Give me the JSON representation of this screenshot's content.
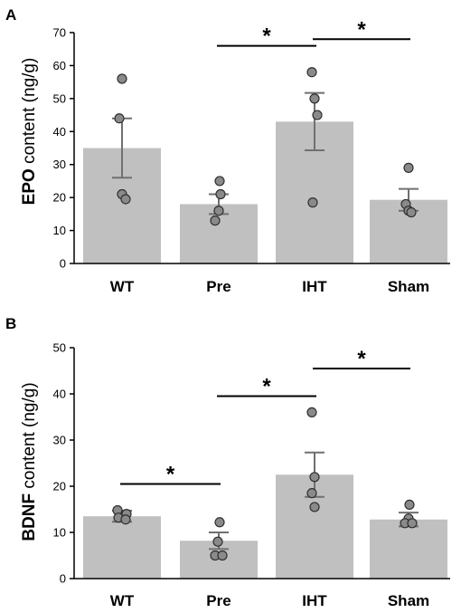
{
  "chart_data": [
    {
      "type": "bar",
      "panel": "A",
      "categories": [
        "WT",
        "Pre",
        "IHT",
        "Sham"
      ],
      "values": [
        35,
        18,
        43,
        19.3
      ],
      "sem": [
        9,
        3,
        8.7,
        3.3
      ],
      "points": [
        [
          56,
          44,
          21,
          19.5
        ],
        [
          25,
          21,
          16,
          13
        ],
        [
          58,
          50,
          45,
          18.5
        ],
        [
          29,
          18,
          16,
          15.5
        ]
      ],
      "ylabel_bold": "EPO",
      "ylabel_rest": " content (ng/g)",
      "ylim": [
        0,
        70
      ],
      "yticks": [
        "0",
        "10",
        "20",
        "30",
        "40",
        "50",
        "60",
        "70"
      ],
      "significance": [
        {
          "from": 1,
          "to": 2,
          "level": 66,
          "label": "*"
        },
        {
          "from": 2,
          "to": 3,
          "level": 68,
          "label": "*"
        }
      ],
      "bar_color": "#c0c0c0",
      "point_color": "#8a8a8a"
    },
    {
      "type": "bar",
      "panel": "B",
      "categories": [
        "WT",
        "Pre",
        "IHT",
        "Sham"
      ],
      "values": [
        13.5,
        8.2,
        22.5,
        12.8
      ],
      "sem": [
        1.2,
        1.8,
        4.8,
        1.5
      ],
      "points": [
        [
          14.8,
          14,
          13.2,
          12.8
        ],
        [
          12.2,
          8,
          5,
          5
        ],
        [
          36,
          22,
          18.5,
          15.5
        ],
        [
          16,
          13,
          12,
          12
        ]
      ],
      "ylabel_bold": "BDNF",
      "ylabel_rest": " content (ng/g)",
      "ylim": [
        0,
        50
      ],
      "yticks": [
        "0",
        "10",
        "20",
        "30",
        "40",
        "50"
      ],
      "significance": [
        {
          "from": 0,
          "to": 1,
          "level": 20.5,
          "label": "*"
        },
        {
          "from": 1,
          "to": 2,
          "level": 39.5,
          "label": "*"
        },
        {
          "from": 2,
          "to": 3,
          "level": 45.5,
          "label": "*"
        }
      ],
      "bar_color": "#c0c0c0",
      "point_color": "#8a8a8a"
    }
  ]
}
